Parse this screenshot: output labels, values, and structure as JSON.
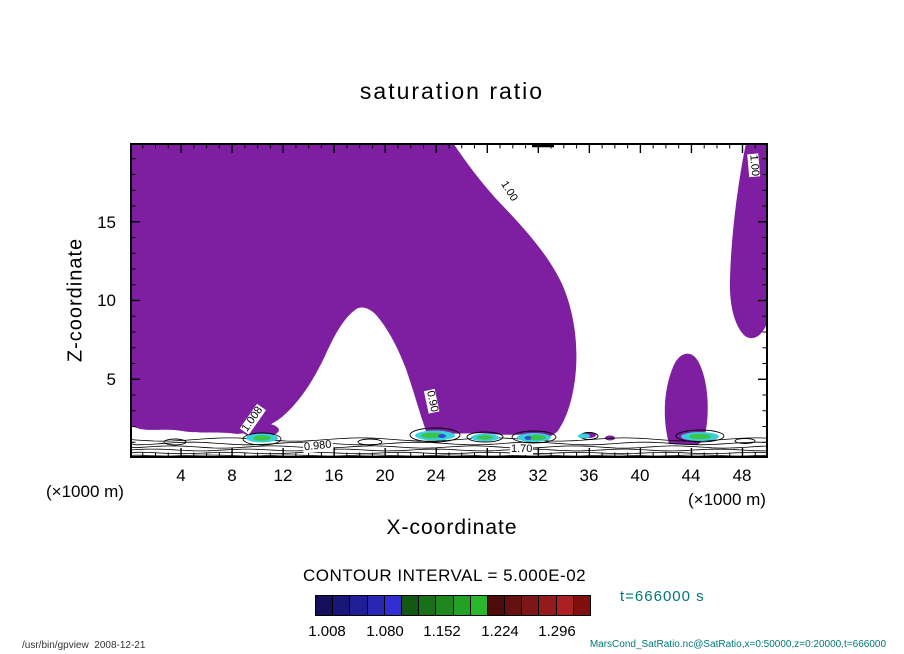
{
  "title": "saturation ratio",
  "axes": {
    "x_label": "X-coordinate",
    "y_label": "Z-coordinate",
    "x_unit_left": "(×1000 m)",
    "x_unit_right": "(×1000 m)",
    "x_ticks": [
      "4",
      "8",
      "12",
      "16",
      "20",
      "24",
      "28",
      "32",
      "36",
      "40",
      "44",
      "48"
    ],
    "y_ticks": [
      "15",
      "10",
      "5"
    ]
  },
  "plot": {
    "contour_line_labels": [
      "1.00",
      "1.00",
      "1.008",
      "0.90",
      "0.980",
      "1.70"
    ]
  },
  "contour_interval_label": "CONTOUR INTERVAL = 5.000E-02",
  "time_label": "t=666000 s",
  "colorbar": {
    "labels": [
      "1.008",
      "1.080",
      "1.152",
      "1.224",
      "1.296"
    ],
    "colors": [
      "#140f5a",
      "#1a1678",
      "#221e96",
      "#2a26b4",
      "#322ed2",
      "#125812",
      "#187018",
      "#1e881e",
      "#24a024",
      "#2ab82a",
      "#4f0c0c",
      "#661111",
      "#7d1616",
      "#941b1b",
      "#ab2020",
      "#801010"
    ]
  },
  "footer": {
    "left": "/usr/bin/gpview  2008-12-21",
    "right": "MarsCond_SatRatio.nc@SatRatio,x=0:50000,z=0:20000,t=666000"
  },
  "colors": {
    "purple_fill": "#7E1FA2",
    "spot_cyan": "#38d0dc",
    "spot_green": "#3cc34c",
    "spot_blue": "#2a50d8",
    "annotation_teal": "#007878",
    "frame": "#000000"
  },
  "chart_data": {
    "type": "heatmap",
    "title": "saturation ratio",
    "xlabel": "X-coordinate (×1000 m)",
    "ylabel": "Z-coordinate (×1000 m)",
    "x_range": [
      0,
      50
    ],
    "y_range": [
      0,
      20
    ],
    "x_ticks": [
      4,
      8,
      12,
      16,
      20,
      24,
      28,
      32,
      36,
      40,
      44,
      48
    ],
    "y_ticks": [
      5,
      10,
      15
    ],
    "contour_interval": "5.000E-02",
    "colorbar_ticks": [
      1.008,
      1.08,
      1.152,
      1.224,
      1.296
    ],
    "time": "t=666000 s",
    "contour_line_labels": [
      1.0,
      1.0,
      1.008,
      0.9,
      0.98,
      1.7
    ],
    "legend_position": "bottom",
    "grid": false,
    "description": "Filled contour plot of saturation ratio over x=0:50000 m, z=0:20000 m at t=666000 s. A large purple shaded region (saturation ratio around/above 1.0) fills the upper-left and center of the domain with a white unsaturated dome intruding from the surface near x=10-16 km; a narrow purple band hugs the right edge and a small purple plume rises near x=43-45 km. Dense thin black contour lines (interval 0.05) crowd near the surface (z<1.5 km) where small cyan/green/blue maxima (up to ~1.3) appear near z≈1 km."
  }
}
